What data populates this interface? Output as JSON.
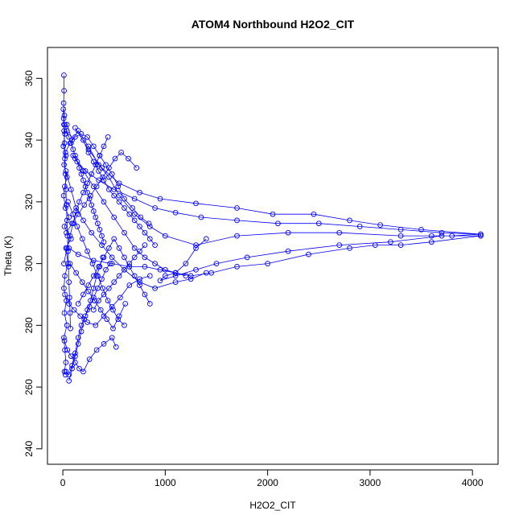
{
  "chart_data": {
    "type": "line",
    "title": "ATOM4 Northbound H2O2_CIT",
    "xlabel": "H2O2_CIT",
    "ylabel": "Theta (K)",
    "xlim": [
      -150,
      4250
    ],
    "ylim": [
      235,
      370
    ],
    "x_ticks": [
      0,
      1000,
      2000,
      3000,
      4000
    ],
    "y_ticks": [
      240,
      260,
      280,
      300,
      320,
      340,
      360
    ],
    "grid": false,
    "legend": "none",
    "marker": "open-circle",
    "series_color": "#0000ff",
    "series": [
      {
        "values": [
          [
            10,
            361
          ],
          [
            12,
            356
          ],
          [
            8,
            352
          ],
          [
            15,
            348
          ],
          [
            10,
            345
          ],
          [
            20,
            342
          ],
          [
            5,
            338
          ],
          [
            30,
            335
          ],
          [
            12,
            332
          ],
          [
            40,
            328
          ],
          [
            18,
            325
          ],
          [
            8,
            322
          ],
          [
            25,
            318
          ],
          [
            60,
            315
          ],
          [
            15,
            312
          ],
          [
            80,
            308
          ],
          [
            30,
            305
          ],
          [
            50,
            300
          ],
          [
            20,
            296
          ],
          [
            10,
            292
          ],
          [
            35,
            288
          ],
          [
            15,
            284
          ],
          [
            40,
            280
          ],
          [
            10,
            276
          ],
          [
            20,
            272
          ],
          [
            30,
            268
          ],
          [
            15,
            265
          ],
          [
            25,
            264
          ]
        ]
      },
      {
        "values": [
          [
            40,
            345
          ],
          [
            90,
            340
          ],
          [
            150,
            343
          ],
          [
            250,
            338
          ],
          [
            350,
            332
          ],
          [
            450,
            328
          ],
          [
            550,
            322
          ],
          [
            700,
            316
          ],
          [
            850,
            312
          ],
          [
            1000,
            309
          ],
          [
            1300,
            306
          ],
          [
            1700,
            309
          ],
          [
            2200,
            310
          ],
          [
            2700,
            310
          ],
          [
            3300,
            309
          ],
          [
            3600,
            309
          ],
          [
            3800,
            309
          ],
          [
            4080,
            309.5
          ],
          [
            4080,
            309
          ],
          [
            3700,
            309
          ],
          [
            3200,
            307
          ],
          [
            2700,
            306
          ],
          [
            2200,
            304
          ],
          [
            1800,
            302
          ],
          [
            1500,
            300
          ],
          [
            1300,
            298
          ],
          [
            1100,
            296
          ],
          [
            950,
            294.5
          ],
          [
            1000,
            296
          ],
          [
            1100,
            297
          ],
          [
            1200,
            296
          ]
        ]
      },
      {
        "values": [
          [
            120,
            344
          ],
          [
            250,
            337
          ],
          [
            380,
            331
          ],
          [
            550,
            326
          ],
          [
            750,
            323
          ],
          [
            950,
            321
          ],
          [
            1300,
            319.5
          ],
          [
            1700,
            318
          ],
          [
            2050,
            316
          ],
          [
            2450,
            316
          ],
          [
            2800,
            314
          ],
          [
            3100,
            312.5
          ],
          [
            3500,
            311
          ],
          [
            4080,
            309.5
          ],
          [
            3700,
            310
          ],
          [
            3300,
            311
          ],
          [
            2900,
            312
          ],
          [
            2500,
            313
          ],
          [
            2100,
            313
          ],
          [
            1700,
            314
          ],
          [
            1350,
            315
          ],
          [
            1100,
            316.5
          ],
          [
            900,
            318
          ],
          [
            700,
            321
          ],
          [
            500,
            324
          ],
          [
            350,
            327
          ],
          [
            220,
            330
          ],
          [
            120,
            334
          ]
        ]
      },
      {
        "values": [
          [
            60,
            305
          ],
          [
            150,
            303
          ],
          [
            300,
            301
          ],
          [
            480,
            300
          ],
          [
            650,
            299
          ],
          [
            800,
            299
          ],
          [
            950,
            298
          ],
          [
            1100,
            297
          ],
          [
            1250,
            296
          ],
          [
            1450,
            297
          ],
          [
            1700,
            299
          ],
          [
            2000,
            300
          ],
          [
            2400,
            303
          ],
          [
            2800,
            305
          ],
          [
            3050,
            306
          ],
          [
            3300,
            306
          ],
          [
            3600,
            307
          ],
          [
            4080,
            309
          ]
        ]
      },
      {
        "values": [
          [
            30,
            330
          ],
          [
            80,
            324
          ],
          [
            130,
            318
          ],
          [
            200,
            314
          ],
          [
            280,
            310
          ],
          [
            380,
            306
          ],
          [
            480,
            302
          ],
          [
            600,
            298
          ],
          [
            750,
            294
          ],
          [
            900,
            292
          ],
          [
            1100,
            294
          ],
          [
            1250,
            295
          ],
          [
            1400,
            297
          ]
        ]
      },
      {
        "values": [
          [
            20,
            290
          ],
          [
            60,
            287
          ],
          [
            110,
            285
          ],
          [
            170,
            283
          ],
          [
            240,
            281
          ],
          [
            320,
            280
          ],
          [
            400,
            283
          ],
          [
            480,
            286
          ],
          [
            560,
            289
          ],
          [
            650,
            293
          ],
          [
            750,
            295
          ],
          [
            850,
            296
          ]
        ]
      },
      {
        "values": [
          [
            15,
            275
          ],
          [
            45,
            272
          ],
          [
            80,
            270
          ],
          [
            120,
            268
          ],
          [
            160,
            266
          ],
          [
            200,
            265
          ],
          [
            260,
            269
          ],
          [
            330,
            272
          ],
          [
            400,
            274
          ],
          [
            480,
            276
          ],
          [
            520,
            273
          ]
        ]
      },
      {
        "values": [
          [
            25,
            336
          ],
          [
            70,
            339
          ],
          [
            120,
            341
          ],
          [
            180,
            342
          ],
          [
            240,
            341
          ],
          [
            300,
            338
          ],
          [
            360,
            335
          ],
          [
            420,
            332
          ],
          [
            480,
            329
          ],
          [
            540,
            325
          ],
          [
            600,
            321
          ],
          [
            680,
            318
          ],
          [
            760,
            315
          ],
          [
            840,
            313
          ]
        ]
      },
      {
        "values": [
          [
            50,
            320
          ],
          [
            100,
            316
          ],
          [
            140,
            312
          ],
          [
            190,
            308
          ],
          [
            240,
            304
          ],
          [
            290,
            300
          ],
          [
            340,
            296
          ],
          [
            390,
            292
          ],
          [
            440,
            288
          ],
          [
            490,
            285
          ],
          [
            540,
            282
          ],
          [
            600,
            280
          ]
        ]
      },
      {
        "values": [
          [
            35,
            310
          ],
          [
            90,
            313
          ],
          [
            150,
            316
          ],
          [
            210,
            319
          ],
          [
            270,
            322
          ],
          [
            330,
            325
          ],
          [
            390,
            328
          ],
          [
            450,
            331
          ],
          [
            510,
            334
          ],
          [
            570,
            336
          ],
          [
            640,
            334
          ],
          [
            720,
            331
          ]
        ]
      },
      {
        "values": [
          [
            70,
            300
          ],
          [
            130,
            297
          ],
          [
            190,
            294
          ],
          [
            250,
            291
          ],
          [
            310,
            288
          ],
          [
            370,
            285
          ],
          [
            430,
            282
          ],
          [
            490,
            279
          ],
          [
            550,
            283
          ],
          [
            610,
            287
          ]
        ]
      },
      {
        "values": [
          [
            100,
            335
          ],
          [
            200,
            330
          ],
          [
            300,
            325
          ],
          [
            400,
            320
          ],
          [
            500,
            315
          ],
          [
            600,
            310
          ],
          [
            700,
            305
          ],
          [
            800,
            302
          ],
          [
            900,
            300
          ],
          [
            1000,
            298
          ],
          [
            1100,
            297
          ],
          [
            1200,
            300
          ],
          [
            1300,
            305
          ],
          [
            1400,
            308
          ]
        ]
      },
      {
        "values": [
          [
            10,
            300
          ],
          [
            40,
            305
          ],
          [
            70,
            309
          ],
          [
            100,
            313
          ],
          [
            130,
            317
          ],
          [
            160,
            320
          ],
          [
            200,
            323
          ],
          [
            240,
            326
          ],
          [
            280,
            329
          ],
          [
            320,
            332
          ],
          [
            360,
            335
          ],
          [
            400,
            338
          ],
          [
            440,
            341
          ]
        ]
      },
      {
        "values": [
          [
            150,
            287
          ],
          [
            200,
            290
          ],
          [
            250,
            293
          ],
          [
            300,
            296
          ],
          [
            350,
            299
          ],
          [
            400,
            302
          ],
          [
            450,
            305
          ],
          [
            500,
            308
          ],
          [
            550,
            305
          ],
          [
            600,
            302
          ],
          [
            650,
            299
          ],
          [
            700,
            296
          ],
          [
            750,
            293
          ],
          [
            800,
            290
          ],
          [
            850,
            287
          ]
        ]
      },
      {
        "values": [
          [
            60,
            262
          ],
          [
            90,
            266
          ],
          [
            120,
            270
          ],
          [
            150,
            274
          ],
          [
            180,
            278
          ],
          [
            210,
            282
          ],
          [
            240,
            285
          ],
          [
            270,
            288
          ],
          [
            300,
            292
          ],
          [
            330,
            296
          ],
          [
            360,
            299
          ],
          [
            390,
            302
          ]
        ]
      },
      {
        "values": [
          [
            200,
            340
          ],
          [
            250,
            336
          ],
          [
            300,
            333
          ],
          [
            350,
            330
          ],
          [
            400,
            327
          ],
          [
            450,
            324
          ],
          [
            500,
            322
          ],
          [
            550,
            320
          ],
          [
            600,
            318
          ],
          [
            650,
            316
          ],
          [
            700,
            314
          ],
          [
            750,
            312
          ],
          [
            800,
            310
          ],
          [
            850,
            308
          ],
          [
            900,
            306
          ]
        ]
      },
      {
        "values": [
          [
            20,
            345
          ],
          [
            40,
            343
          ],
          [
            60,
            341
          ],
          [
            80,
            339
          ],
          [
            100,
            337
          ],
          [
            120,
            335
          ],
          [
            140,
            333
          ],
          [
            160,
            331
          ],
          [
            180,
            329
          ],
          [
            200,
            327
          ],
          [
            220,
            325
          ],
          [
            240,
            323
          ],
          [
            260,
            321
          ],
          [
            280,
            319
          ],
          [
            300,
            317
          ],
          [
            320,
            315
          ],
          [
            340,
            313
          ],
          [
            360,
            311
          ],
          [
            380,
            309
          ],
          [
            400,
            307
          ]
        ]
      },
      {
        "values": [
          [
            5,
            350
          ],
          [
            8,
            347
          ],
          [
            12,
            343
          ],
          [
            16,
            339
          ],
          [
            20,
            334
          ],
          [
            25,
            329
          ],
          [
            30,
            324
          ],
          [
            35,
            319
          ],
          [
            40,
            314
          ],
          [
            45,
            309
          ],
          [
            50,
            304
          ],
          [
            55,
            299
          ],
          [
            60,
            294
          ],
          [
            65,
            289
          ],
          [
            70,
            284
          ],
          [
            75,
            279
          ]
        ]
      },
      {
        "values": [
          [
            300,
            285
          ],
          [
            350,
            288
          ],
          [
            400,
            290
          ],
          [
            450,
            292
          ],
          [
            500,
            294
          ],
          [
            550,
            296
          ],
          [
            600,
            298
          ],
          [
            650,
            300
          ],
          [
            700,
            302
          ],
          [
            750,
            304
          ],
          [
            800,
            306
          ]
        ]
      },
      {
        "values": [
          [
            30,
            265
          ],
          [
            60,
            264
          ],
          [
            90,
            267
          ],
          [
            120,
            271
          ],
          [
            150,
            276
          ],
          [
            180,
            280
          ],
          [
            220,
            283
          ],
          [
            260,
            286
          ],
          [
            300,
            289
          ],
          [
            340,
            292
          ],
          [
            380,
            295
          ],
          [
            420,
            298
          ],
          [
            460,
            300
          ]
        ]
      }
    ]
  }
}
